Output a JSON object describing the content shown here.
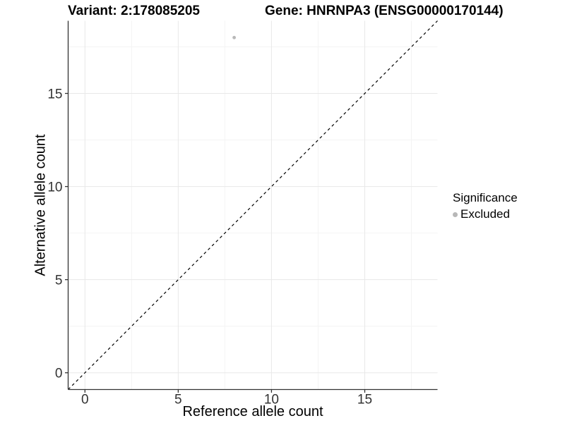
{
  "header": {
    "variant_title": "Variant: 2:178085205",
    "gene_title": "Gene: HNRNPA3 (ENSG00000170144)"
  },
  "chart_data": {
    "type": "scatter",
    "title_left": "Variant: 2:178085205",
    "title_right": "Gene: HNRNPA3 (ENSG00000170144)",
    "xlabel": "Reference allele count",
    "ylabel": "Alternative allele count",
    "xlim": [
      -0.9,
      18.9
    ],
    "ylim": [
      -0.9,
      18.9
    ],
    "x_major_ticks": [
      0,
      5,
      10,
      15
    ],
    "y_major_ticks": [
      0,
      5,
      10,
      15
    ],
    "x_minor_ticks": [
      2.5,
      7.5,
      12.5,
      17.5
    ],
    "y_minor_ticks": [
      2.5,
      7.5,
      12.5,
      17.5
    ],
    "grid": "major+minor",
    "legend_position": "right",
    "points": [
      {
        "x": 8,
        "y": 18,
        "series": "Excluded"
      }
    ],
    "reference_line": {
      "type": "identity",
      "intercept": 0,
      "slope": 1,
      "style": "dashed",
      "color": "#000000"
    },
    "legend": {
      "title": "Significance",
      "items": [
        {
          "label": "Excluded",
          "color": "#b8b8b8"
        }
      ]
    },
    "colors": {
      "point": "#b8b8b8",
      "grid_major": "#e8e8e8",
      "grid_minor": "#f4f4f4",
      "axis_line": "#333333",
      "tick_text": "#333333"
    }
  }
}
